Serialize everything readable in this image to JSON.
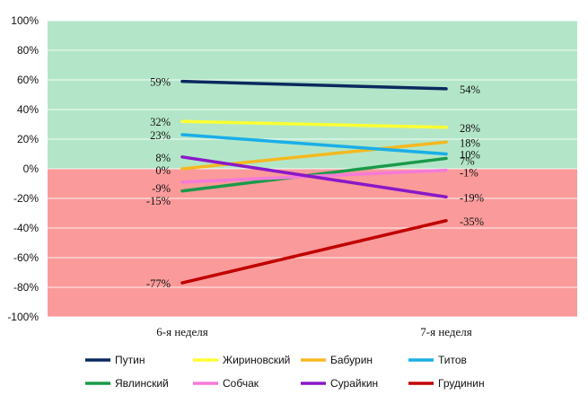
{
  "chart_data": {
    "type": "line",
    "categories": [
      "6-я неделя",
      "7-я неделя"
    ],
    "ylim": [
      -100,
      100
    ],
    "yticks": [
      -100,
      -80,
      -60,
      -40,
      -20,
      0,
      20,
      40,
      60,
      80,
      100
    ],
    "ytick_labels": [
      "-100%",
      "-80%",
      "-60%",
      "-40%",
      "-20%",
      "0%",
      "20%",
      "40%",
      "60%",
      "80%",
      "100%"
    ],
    "background_bands": [
      {
        "from": 0,
        "to": 100,
        "color": "#b3e6c8"
      },
      {
        "from": -100,
        "to": 0,
        "color": "#fa9a9a"
      }
    ],
    "grid": true,
    "legend_position": "bottom",
    "series": [
      {
        "name": "Путин",
        "values": [
          59,
          54
        ],
        "labels": [
          "59%",
          "54%"
        ],
        "color": "#0a2a5e"
      },
      {
        "name": "Жириновский",
        "values": [
          32,
          28
        ],
        "labels": [
          "32%",
          "28%"
        ],
        "color": "#ffff33"
      },
      {
        "name": "Бабурин",
        "values": [
          0,
          18
        ],
        "labels": [
          "0%",
          "18%"
        ],
        "color": "#f5b820"
      },
      {
        "name": "Титов",
        "values": [
          23,
          10
        ],
        "labels": [
          "23%",
          "10%"
        ],
        "color": "#1aaee8"
      },
      {
        "name": "Явлинский",
        "values": [
          -15,
          7
        ],
        "labels": [
          "-15%",
          "7%"
        ],
        "color": "#1a9a4a"
      },
      {
        "name": "Собчак",
        "values": [
          -9,
          -1
        ],
        "labels": [
          "-9%",
          "-1%"
        ],
        "color": "#f57ad8"
      },
      {
        "name": "Сурайкин",
        "values": [
          8,
          -19
        ],
        "labels": [
          "8%",
          "-19%"
        ],
        "color": "#8a18c8"
      },
      {
        "name": "Грудинин",
        "values": [
          -77,
          -35
        ],
        "labels": [
          "-77%",
          "-35%"
        ],
        "color": "#c00000"
      }
    ]
  }
}
